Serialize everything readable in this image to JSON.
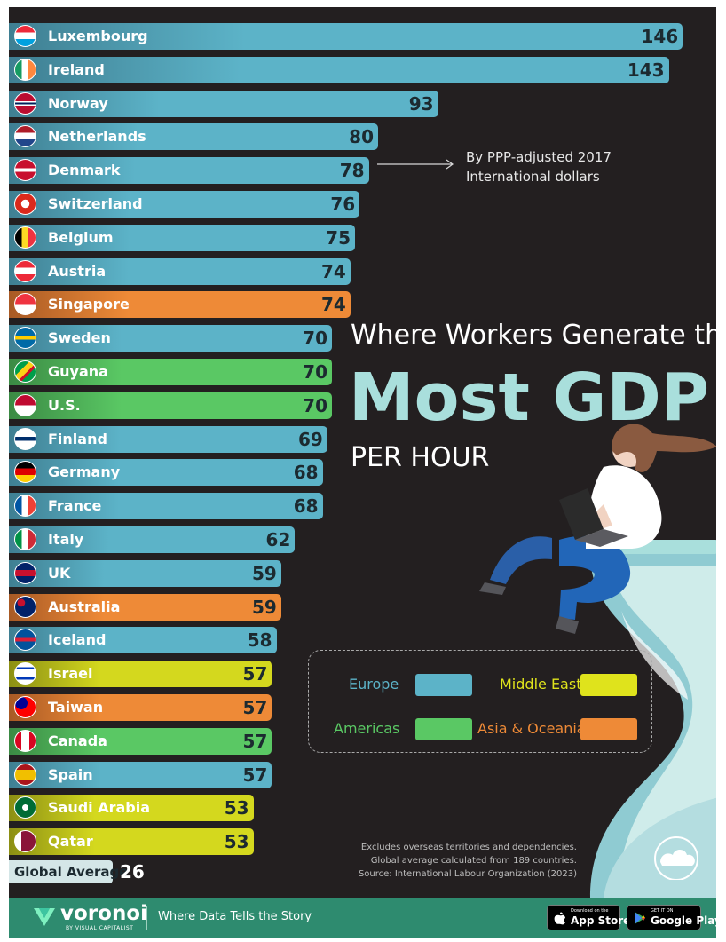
{
  "chart_data": {
    "type": "bar",
    "orientation": "horizontal",
    "title": "Where Workers Generate the Most GDP Per Hour",
    "title_parts": [
      "Where Workers Generate the",
      "Most GDP",
      "PER HOUR"
    ],
    "unit_note": "By PPP-adjusted 2017 International dollars",
    "categories": [
      "Luxembourg",
      "Ireland",
      "Norway",
      "Netherlands",
      "Denmark",
      "Switzerland",
      "Belgium",
      "Austria",
      "Singapore",
      "Sweden",
      "Guyana",
      "U.S.",
      "Finland",
      "Germany",
      "France",
      "Italy",
      "UK",
      "Australia",
      "Iceland",
      "Israel",
      "Taiwan",
      "Canada",
      "Spain",
      "Saudi Arabia",
      "Qatar"
    ],
    "values": [
      146,
      143,
      93,
      80,
      78,
      76,
      75,
      74,
      74,
      70,
      70,
      70,
      69,
      68,
      68,
      62,
      59,
      59,
      58,
      57,
      57,
      57,
      57,
      53,
      53
    ],
    "regions": [
      "Europe",
      "Europe",
      "Europe",
      "Europe",
      "Europe",
      "Europe",
      "Europe",
      "Europe",
      "Asia & Oceania",
      "Europe",
      "Americas",
      "Americas",
      "Europe",
      "Europe",
      "Europe",
      "Europe",
      "Europe",
      "Asia & Oceania",
      "Europe",
      "Middle East",
      "Asia & Oceania",
      "Americas",
      "Europe",
      "Middle East",
      "Middle East"
    ],
    "global_average": {
      "label": "Global Average",
      "value": 26
    },
    "legend": [
      {
        "name": "Europe",
        "color": "#5cb3c8"
      },
      {
        "name": "Middle East",
        "color": "#dfe31c"
      },
      {
        "name": "Americas",
        "color": "#5ac864"
      },
      {
        "name": "Asia & Oceania",
        "color": "#ee8a37"
      }
    ],
    "legend_placement": "bottom-right",
    "grid": false
  },
  "notes": [
    "Excludes overseas territories and dependencies.",
    "Global average calculated from 189 countries.",
    "Source: International Labour Organization (2023)"
  ],
  "footer": {
    "brand": "voronoi",
    "brand_sub": "BY VISUAL CAPITALIST",
    "tagline": "Where Data Tells the Story",
    "app_store_small": "Download on the",
    "app_store": "App Store",
    "google_play_small": "GET IT ON",
    "google_play": "Google Play"
  },
  "colors": {
    "background": "#231f20",
    "footer": "#2e8b6f",
    "title_accent": "#a9dfdc"
  },
  "icons": [
    "flag-icons",
    "laptop-woman-illustration",
    "hourglass-illustration",
    "voronoi-logo-icon",
    "apple-icon",
    "play-icon"
  ]
}
